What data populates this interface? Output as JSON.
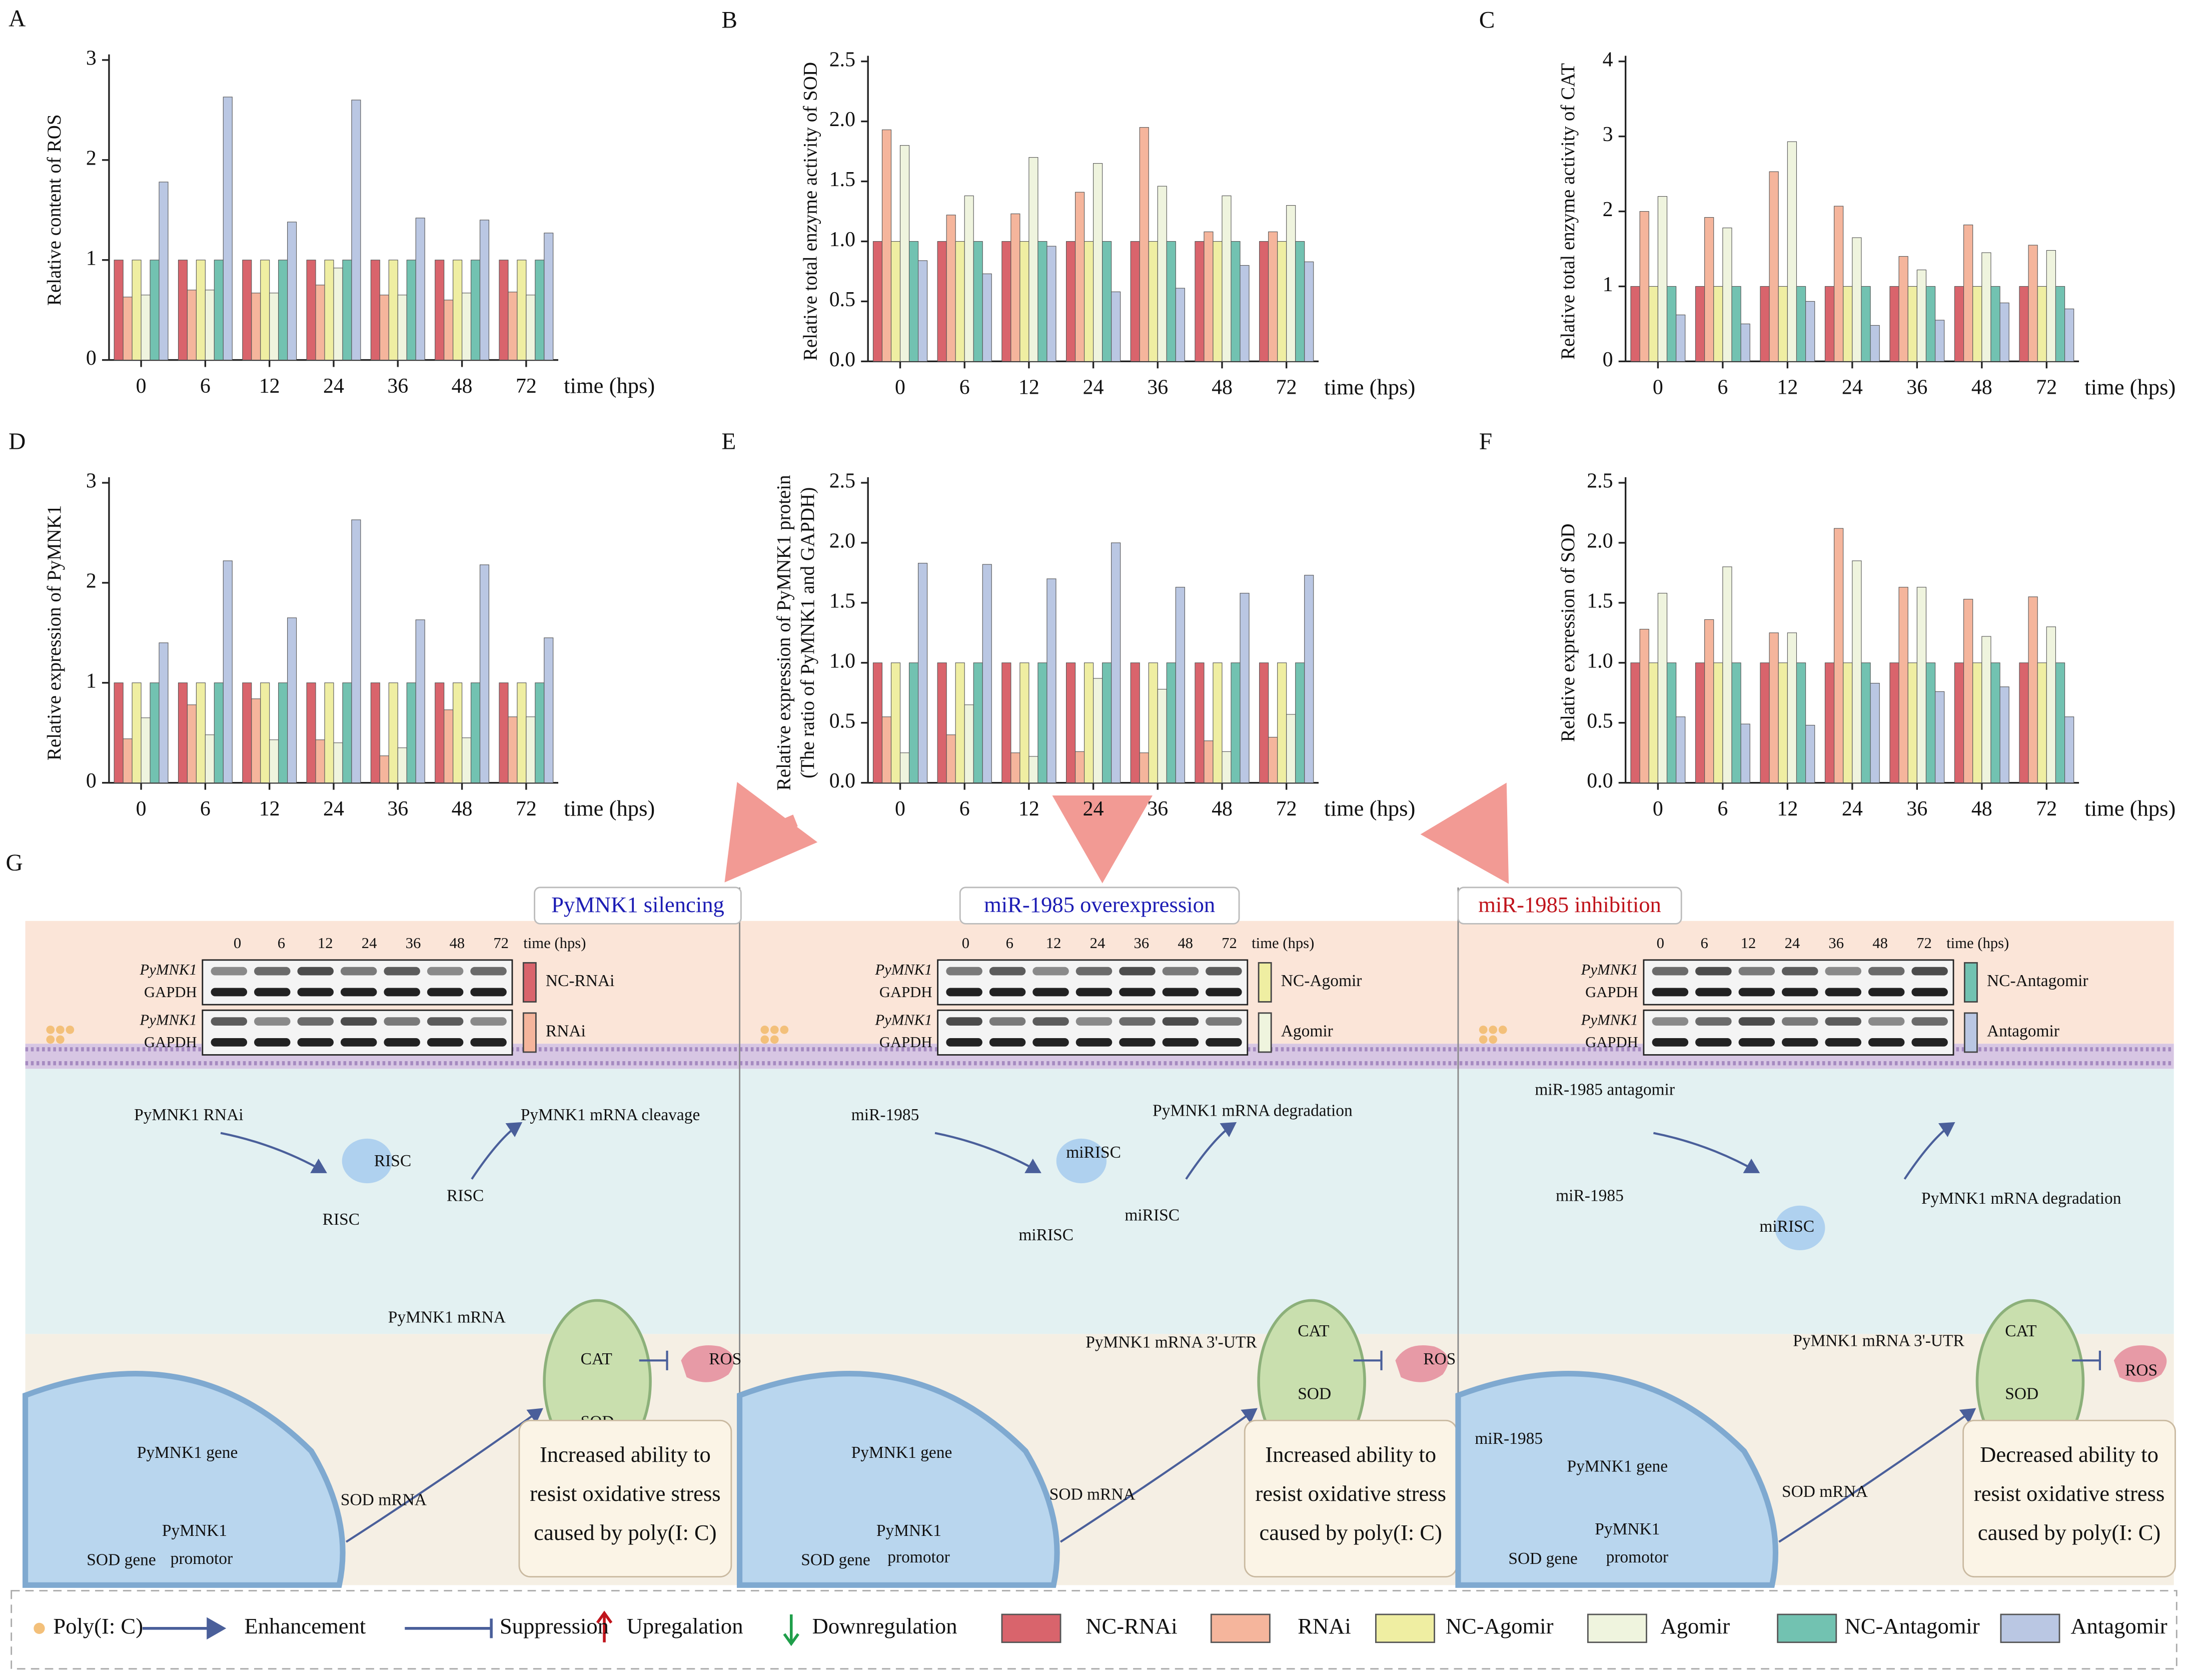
{
  "chart_data": [
    {
      "type": "bar",
      "panel": "A",
      "ylabel": "Relative content of ROS",
      "xlabel": "time (hps)",
      "categories": [
        "0",
        "6",
        "12",
        "24",
        "36",
        "48",
        "72"
      ],
      "ylim": [
        0,
        3
      ],
      "yticks": [
        0,
        1,
        2,
        3
      ],
      "series": [
        {
          "color": "#d9646c",
          "values": [
            1,
            1,
            1,
            1,
            1,
            1,
            1
          ]
        },
        {
          "color": "#f5b59c",
          "values": [
            0.63,
            0.7,
            0.67,
            0.75,
            0.65,
            0.6,
            0.68
          ]
        },
        {
          "color": "#efeea2",
          "values": [
            1,
            1,
            1,
            1,
            1,
            1,
            1
          ]
        },
        {
          "color": "#eff4de",
          "values": [
            0.65,
            0.7,
            0.67,
            0.92,
            0.65,
            0.67,
            0.65
          ]
        },
        {
          "color": "#72c2b1",
          "values": [
            1,
            1,
            1,
            1,
            1,
            1,
            1
          ]
        },
        {
          "color": "#bac7e3",
          "values": [
            1.78,
            2.63,
            1.38,
            2.6,
            1.42,
            1.4,
            1.27
          ]
        }
      ]
    },
    {
      "type": "bar",
      "panel": "B",
      "ylabel": "Relative total enzyme activity of SOD",
      "xlabel": "time (hps)",
      "categories": [
        "0",
        "6",
        "12",
        "24",
        "36",
        "48",
        "72"
      ],
      "ylim": [
        0,
        2.5
      ],
      "yticks": [
        {
          "value": 0,
          "label": "0.0"
        },
        0.5,
        {
          "value": 1,
          "label": "1.0"
        },
        1.5,
        {
          "value": 2,
          "label": "2.0"
        },
        2.5
      ],
      "series": [
        {
          "color": "#d9646c",
          "values": [
            1,
            1,
            1,
            1,
            1,
            1,
            1
          ]
        },
        {
          "color": "#f5b59c",
          "values": [
            1.93,
            1.22,
            1.23,
            1.41,
            1.95,
            1.08,
            1.08
          ]
        },
        {
          "color": "#efeea2",
          "values": [
            1,
            1,
            1,
            1,
            1,
            1,
            1
          ]
        },
        {
          "color": "#eff4de",
          "values": [
            1.8,
            1.38,
            1.7,
            1.65,
            1.46,
            1.38,
            1.3
          ]
        },
        {
          "color": "#72c2b1",
          "values": [
            1,
            1,
            1,
            1,
            1,
            1,
            1
          ]
        },
        {
          "color": "#bac7e3",
          "values": [
            0.84,
            0.73,
            0.96,
            0.58,
            0.61,
            0.8,
            0.83
          ]
        }
      ]
    },
    {
      "type": "bar",
      "panel": "C",
      "ylabel": "Relative total enzyme activity of CAT",
      "xlabel": "time (hps)",
      "categories": [
        "0",
        "6",
        "12",
        "24",
        "36",
        "48",
        "72"
      ],
      "ylim": [
        0,
        4
      ],
      "yticks": [
        0,
        1,
        2,
        3,
        4
      ],
      "series": [
        {
          "color": "#d9646c",
          "values": [
            1,
            1,
            1,
            1,
            1,
            1,
            1
          ]
        },
        {
          "color": "#f5b59c",
          "values": [
            2.0,
            1.92,
            2.53,
            2.07,
            1.4,
            1.82,
            1.55
          ]
        },
        {
          "color": "#efeea2",
          "values": [
            1,
            1,
            1,
            1,
            1,
            1,
            1
          ]
        },
        {
          "color": "#eff4de",
          "values": [
            2.2,
            1.78,
            2.93,
            1.65,
            1.22,
            1.45,
            1.48
          ]
        },
        {
          "color": "#72c2b1",
          "values": [
            1,
            1,
            1,
            1,
            1,
            1,
            1
          ]
        },
        {
          "color": "#bac7e3",
          "values": [
            0.62,
            0.5,
            0.8,
            0.48,
            0.55,
            0.78,
            0.7
          ]
        }
      ]
    },
    {
      "type": "bar",
      "panel": "D",
      "ylabel": "Relative expression of PyMNK1",
      "xlabel": "time (hps)",
      "categories": [
        "0",
        "6",
        "12",
        "24",
        "36",
        "48",
        "72"
      ],
      "ylim": [
        0,
        3
      ],
      "yticks": [
        0,
        1,
        2,
        3
      ],
      "series": [
        {
          "color": "#d9646c",
          "values": [
            1,
            1,
            1,
            1,
            1,
            1,
            1
          ]
        },
        {
          "color": "#f5b59c",
          "values": [
            0.44,
            0.78,
            0.84,
            0.43,
            0.27,
            0.73,
            0.66
          ]
        },
        {
          "color": "#efeea2",
          "values": [
            1,
            1,
            1,
            1,
            1,
            1,
            1
          ]
        },
        {
          "color": "#eff4de",
          "values": [
            0.65,
            0.48,
            0.43,
            0.4,
            0.35,
            0.45,
            0.66
          ]
        },
        {
          "color": "#72c2b1",
          "values": [
            1,
            1,
            1,
            1,
            1,
            1,
            1
          ]
        },
        {
          "color": "#bac7e3",
          "values": [
            1.4,
            2.22,
            1.65,
            2.63,
            1.63,
            2.18,
            1.45
          ]
        }
      ]
    },
    {
      "type": "bar",
      "panel": "E",
      "ylabel": [
        "Relative expression of  PyMNK1 protein",
        "(The ratio of  PyMNK1 and GAPDH)"
      ],
      "xlabel": "time (hps)",
      "categories": [
        "0",
        "6",
        "12",
        "24",
        "36",
        "48",
        "72"
      ],
      "ylim": [
        0,
        2.5
      ],
      "yticks": [
        {
          "value": 0,
          "label": "0.0"
        },
        0.5,
        {
          "value": 1,
          "label": "1.0"
        },
        1.5,
        {
          "value": 2,
          "label": "2.0"
        },
        2.5
      ],
      "series": [
        {
          "color": "#d9646c",
          "values": [
            1,
            1,
            1,
            1,
            1,
            1,
            1
          ]
        },
        {
          "color": "#f5b59c",
          "values": [
            0.55,
            0.4,
            0.25,
            0.26,
            0.25,
            0.35,
            0.38
          ]
        },
        {
          "color": "#efeea2",
          "values": [
            1,
            1,
            1,
            1,
            1,
            1,
            1
          ]
        },
        {
          "color": "#eff4de",
          "values": [
            0.25,
            0.65,
            0.22,
            0.87,
            0.78,
            0.26,
            0.57
          ]
        },
        {
          "color": "#72c2b1",
          "values": [
            1,
            1,
            1,
            1,
            1,
            1,
            1
          ]
        },
        {
          "color": "#bac7e3",
          "values": [
            1.83,
            1.82,
            1.7,
            2.0,
            1.63,
            1.58,
            1.73
          ]
        }
      ]
    },
    {
      "type": "bar",
      "panel": "F",
      "ylabel": "Relative expression of SOD",
      "xlabel": "time (hps)",
      "categories": [
        "0",
        "6",
        "12",
        "24",
        "36",
        "48",
        "72"
      ],
      "ylim": [
        0,
        2.5
      ],
      "yticks": [
        {
          "value": 0,
          "label": "0.0"
        },
        0.5,
        {
          "value": 1,
          "label": "1.0"
        },
        1.5,
        {
          "value": 2,
          "label": "2.0"
        },
        2.5
      ],
      "series": [
        {
          "color": "#d9646c",
          "values": [
            1,
            1,
            1,
            1,
            1,
            1,
            1
          ]
        },
        {
          "color": "#f5b59c",
          "values": [
            1.28,
            1.36,
            1.25,
            2.12,
            1.63,
            1.53,
            1.55
          ]
        },
        {
          "color": "#efeea2",
          "values": [
            1,
            1,
            1,
            1,
            1,
            1,
            1
          ]
        },
        {
          "color": "#eff4de",
          "values": [
            1.58,
            1.8,
            1.25,
            1.85,
            1.63,
            1.22,
            1.3
          ]
        },
        {
          "color": "#72c2b1",
          "values": [
            1,
            1,
            1,
            1,
            1,
            1,
            1
          ]
        },
        {
          "color": "#bac7e3",
          "values": [
            0.55,
            0.49,
            0.48,
            0.83,
            0.76,
            0.8,
            0.55
          ]
        }
      ]
    }
  ],
  "diagram": {
    "panel": "G",
    "times": [
      "0",
      "6",
      "12",
      "24",
      "36",
      "48",
      "72"
    ],
    "time_unit": "time (hps)",
    "sections": [
      {
        "title": "PyMNK1 silencing",
        "title_color": "#1c1cb4",
        "blot_labels": [
          "PyMNK1",
          "GAPDH",
          "PyMNK1",
          "GAPDH"
        ],
        "groups": [
          {
            "name": "NC-RNAi",
            "color": "#d9646c"
          },
          {
            "name": "RNAi",
            "color": "#f5b59c"
          }
        ],
        "labels": [
          "PyMNK1 RNAi",
          "RISC",
          "RISC",
          "RISC",
          "PyMNK1 mRNA cleavage",
          "PyMNK1 mRNA",
          "CAT",
          "SOD",
          "ROS",
          "PyMNK1 gene",
          "PyMNK1",
          "SOD gene",
          "promotor",
          "SOD mRNA"
        ],
        "conclusion": [
          "Increased ability to",
          "resist oxidative stress",
          "caused by poly(I: C)"
        ]
      },
      {
        "title": "miR-1985 overexpression",
        "title_color": "#1c1cb4",
        "blot_labels": [
          "PyMNK1",
          "GAPDH",
          "PyMNK1",
          "GAPDH"
        ],
        "groups": [
          {
            "name": "NC-Agomir",
            "color": "#efeea2"
          },
          {
            "name": "Agomir",
            "color": "#eff4de"
          }
        ],
        "labels": [
          "miR-1985",
          "miRISC",
          "miRISC",
          "miRISC",
          "PyMNK1 mRNA degradation",
          "PyMNK1 mRNA 3'-UTR",
          "CAT",
          "SOD",
          "ROS",
          "PyMNK1 gene",
          "PyMNK1",
          "SOD gene",
          "promotor",
          "SOD mRNA"
        ],
        "conclusion": [
          "Increased ability to",
          "resist oxidative stress",
          "caused by poly(I: C)"
        ]
      },
      {
        "title": "miR-1985 inhibition",
        "title_color": "#c0141c",
        "blot_labels": [
          "PyMNK1",
          "GAPDH",
          "PyMNK1",
          "GAPDH"
        ],
        "groups": [
          {
            "name": "NC-Antagomir",
            "color": "#72c2b1"
          },
          {
            "name": "Antagomir",
            "color": "#bac7e3"
          }
        ],
        "labels": [
          "miR-1985 antagomir",
          "miR-1985",
          "miRISC",
          "PyMNK1 mRNA degradation",
          "PyMNK1 mRNA 3'-UTR",
          "CAT",
          "SOD",
          "ROS",
          "miR-1985",
          "PyMNK1 gene",
          "PyMNK1",
          "SOD gene",
          "promotor",
          "SOD mRNA"
        ],
        "conclusion": [
          "Decreased ability to",
          "resist oxidative stress",
          "caused by poly(I: C)"
        ]
      }
    ]
  },
  "key": {
    "symbols": [
      "Poly(I: C)",
      "Enhancement",
      "Suppression",
      "Upregalation",
      "Downregulation"
    ],
    "legend": [
      {
        "name": "NC-RNAi",
        "color": "#d9646c"
      },
      {
        "name": "RNAi",
        "color": "#f5b59c"
      },
      {
        "name": "NC-Agomir",
        "color": "#efeea2"
      },
      {
        "name": "Agomir",
        "color": "#eff4de"
      },
      {
        "name": "NC-Antagomir",
        "color": "#72c2b1"
      },
      {
        "name": "Antagomir",
        "color": "#bac7e3"
      }
    ]
  }
}
